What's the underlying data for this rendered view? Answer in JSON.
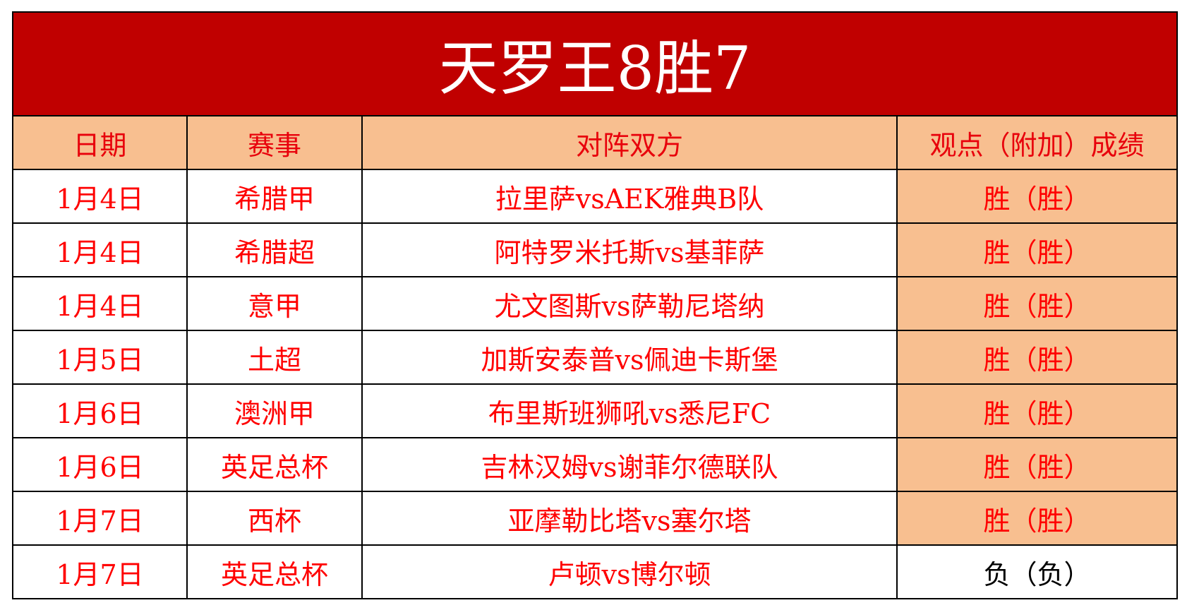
{
  "title": "天罗王8胜7",
  "headers": [
    "日期",
    "赛事",
    "对阵双方",
    "观点（附加）成绩"
  ],
  "rows": [
    {
      "date": "1月4日",
      "league": "希腊甲",
      "match": "拉里萨vsAEK雅典B队",
      "result": "胜（胜）",
      "win": true
    },
    {
      "date": "1月4日",
      "league": "希腊超",
      "match": "阿特罗米托斯vs基菲萨",
      "result": "胜（胜）",
      "win": true
    },
    {
      "date": "1月4日",
      "league": "意甲",
      "match": "尤文图斯vs萨勒尼塔纳",
      "result": "胜（胜）",
      "win": true
    },
    {
      "date": "1月5日",
      "league": "土超",
      "match": "加斯安泰普vs佩迪卡斯堡",
      "result": "胜（胜）",
      "win": true
    },
    {
      "date": "1月6日",
      "league": "澳洲甲",
      "match": "布里斯班狮吼vs悉尼FC",
      "result": "胜（胜）",
      "win": true
    },
    {
      "date": "1月6日",
      "league": "英足总杯",
      "match": "吉林汉姆vs谢菲尔德联队",
      "result": "胜（胜）",
      "win": true
    },
    {
      "date": "1月7日",
      "league": "西杯",
      "match": "亚摩勒比塔vs塞尔塔",
      "result": "胜（胜）",
      "win": true
    },
    {
      "date": "1月7日",
      "league": "英足总杯",
      "match": "卢顿vs博尔顿",
      "result": "负（负）",
      "win": false
    }
  ],
  "colors": {
    "title_bg": "#C00000",
    "highlight_bg": "#F8BF90",
    "text_red": "#FF0000"
  }
}
